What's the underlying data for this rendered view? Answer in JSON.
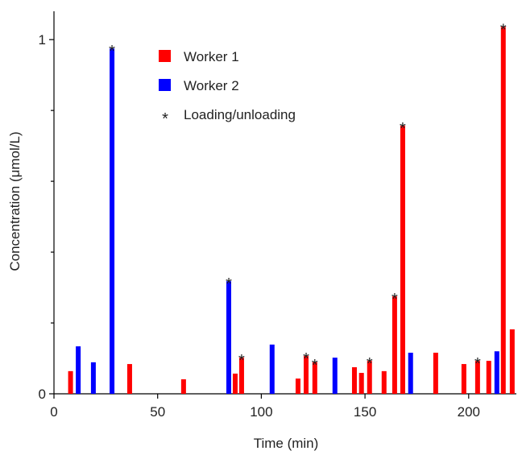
{
  "chart_data": {
    "type": "bar",
    "x_label": "Time (min)",
    "y_label": "Concentration (μmol/L)",
    "xlim": [
      0,
      223
    ],
    "xticks": [
      0,
      50,
      100,
      150,
      200
    ],
    "ylim": [
      0,
      1.08
    ],
    "yticks": [
      0,
      1
    ],
    "yminor_ticks": [
      0.2,
      0.4,
      0.6,
      0.8
    ],
    "legend": "upper center",
    "series": [
      {
        "name": "Worker 1",
        "color": "#ff0000",
        "x": [
          8,
          36.5,
          62.5,
          87.4,
          90.5,
          117.7,
          121.6,
          125.8,
          144.9,
          148.3,
          152.2,
          159.2,
          164.3,
          168.2,
          184.1,
          197.7,
          204.3,
          209.7,
          216.7,
          221
        ],
        "values": [
          0.064,
          0.084,
          0.041,
          0.057,
          0.102,
          0.043,
          0.107,
          0.089,
          0.075,
          0.059,
          0.093,
          0.064,
          0.275,
          0.757,
          0.116,
          0.084,
          0.093,
          0.093,
          1.036,
          0.182
        ]
      },
      {
        "name": "Worker 2",
        "color": "#0000ff",
        "x": [
          11.7,
          19,
          28,
          84.3,
          105.2,
          135.5,
          172,
          213.6
        ],
        "values": [
          0.134,
          0.089,
          0.975,
          0.318,
          0.139,
          0.102,
          0.116,
          0.12
        ]
      },
      {
        "name": "Loading/unloading",
        "type": "scatter",
        "color": "#555555",
        "x": [
          28,
          84.3,
          90.5,
          121.6,
          125.8,
          152.2,
          164.3,
          168.2,
          204.3,
          216.7
        ],
        "values": [
          0.975,
          0.318,
          0.102,
          0.107,
          0.089,
          0.093,
          0.275,
          0.757,
          0.093,
          1.036
        ]
      }
    ]
  }
}
